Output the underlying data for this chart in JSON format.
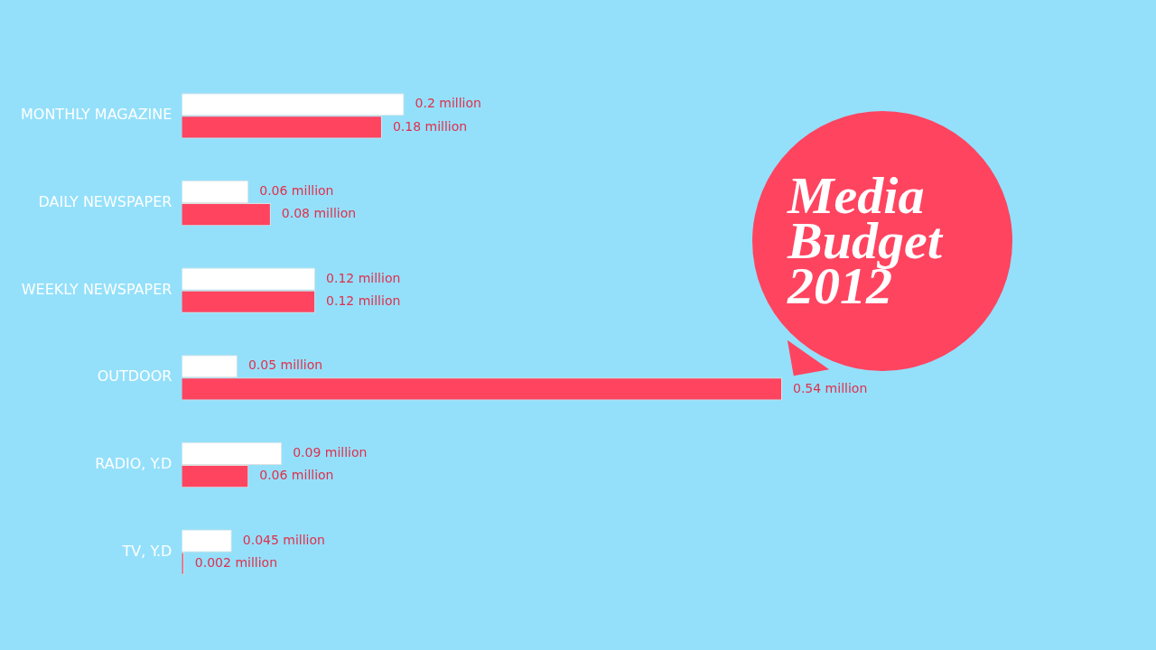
{
  "chart_data": {
    "type": "bar",
    "orientation": "horizontal",
    "title": "Media Budget 2012",
    "categories": [
      "MONTHLY MAGAZINE",
      "DAILY NEWSPAPER",
      "WEEKLY NEWSPAPER",
      "OUTDOOR",
      "RADIO, Y.D",
      "TV, Y.D"
    ],
    "series": [
      {
        "color": "#ffffff",
        "values": [
          0.2,
          0.06,
          0.12,
          0.05,
          0.09,
          0.045
        ],
        "value_labels": [
          "0.2 million",
          "0.06 million",
          "0.12 million",
          "0.05 million",
          "0.09 million",
          "0.045 million"
        ]
      },
      {
        "color": "#ff4460",
        "values": [
          0.18,
          0.08,
          0.12,
          0.54,
          0.06,
          0.002
        ],
        "value_labels": [
          "0.18 million",
          "0.08 million",
          "0.12 million",
          "0.54 million",
          "0.06 million",
          "0.002 million"
        ]
      }
    ],
    "tick_labels": "y",
    "grid": false,
    "legend": false
  }
}
